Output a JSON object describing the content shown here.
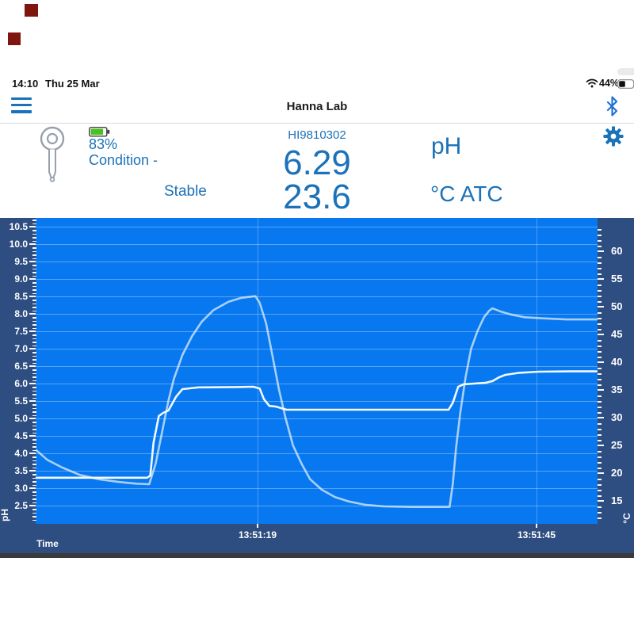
{
  "colors": {
    "accent_blue": "#1b72b8",
    "plot_bg": "#0778f0",
    "chart_bg": "#2e4d80",
    "strip": "#3b3b3b",
    "marker_red": "#7e150f",
    "battery_green": "#46c31e",
    "bluetooth_blue": "#1f6fd6",
    "ph_line": "#fbfdff",
    "temp_line": "#cfe5fa"
  },
  "status_bar": {
    "time": "14:10",
    "date": "Thu 25 Mar",
    "battery_percent": "44%"
  },
  "header": {
    "title": "Hanna Lab"
  },
  "meter": {
    "battery_level": "83%",
    "condition": "Condition -",
    "stability": "Stable",
    "device_id": "HI9810302",
    "ph_value": "6.29",
    "ph_unit": "pH",
    "temp_value": "23.6",
    "temp_unit": "°C ATC"
  },
  "chart_data": {
    "type": "line",
    "x_axis": {
      "title": "Time",
      "tick_labels": [
        "13:51:19",
        "13:51:45"
      ],
      "tick_offsets_s": [
        0,
        26
      ],
      "range_s": [
        -20.7,
        31.7
      ]
    },
    "y_axis_left": {
      "title": "pH",
      "tick_max": 10.5,
      "tick_min": 2.5,
      "tick_step": 0.5,
      "minor_step": 0.1,
      "range": [
        2.05,
        10.75
      ]
    },
    "y_axis_right": {
      "title": "°C",
      "tick_max": 60,
      "tick_min": 15,
      "tick_step": 5,
      "minor_step": 1,
      "range": [
        11.3,
        65.6
      ]
    },
    "legend": "none",
    "grid": "on",
    "series": [
      {
        "name": "Temperature",
        "axis": "right",
        "points": [
          [
            -20.6,
            24.1
          ],
          [
            -19.6,
            22.4
          ],
          [
            -18.2,
            21.0
          ],
          [
            -16.6,
            19.7
          ],
          [
            -14.8,
            18.9
          ],
          [
            -12.9,
            18.4
          ],
          [
            -11.3,
            18.1
          ],
          [
            -10.1,
            18.0
          ],
          [
            -9.5,
            21.7
          ],
          [
            -8.9,
            27.4
          ],
          [
            -8.3,
            33.1
          ],
          [
            -7.8,
            37.0
          ],
          [
            -7.0,
            41.3
          ],
          [
            -6.1,
            44.7
          ],
          [
            -5.2,
            47.3
          ],
          [
            -4.1,
            49.4
          ],
          [
            -2.7,
            50.9
          ],
          [
            -1.5,
            51.6
          ],
          [
            -0.2,
            51.9
          ],
          [
            0.2,
            50.7
          ],
          [
            0.8,
            47.0
          ],
          [
            1.4,
            41.0
          ],
          [
            2.0,
            35.0
          ],
          [
            2.6,
            30.0
          ],
          [
            3.3,
            25.0
          ],
          [
            4.1,
            21.7
          ],
          [
            4.9,
            18.9
          ],
          [
            6.0,
            17.0
          ],
          [
            7.2,
            15.7
          ],
          [
            8.5,
            14.9
          ],
          [
            10.0,
            14.3
          ],
          [
            11.8,
            14.0
          ],
          [
            14.4,
            13.9
          ],
          [
            17.4,
            13.9
          ],
          [
            17.9,
            13.9
          ],
          [
            18.2,
            18.1
          ],
          [
            18.5,
            24.6
          ],
          [
            18.9,
            31.0
          ],
          [
            19.4,
            37.4
          ],
          [
            19.9,
            42.4
          ],
          [
            20.5,
            45.6
          ],
          [
            21.1,
            48.1
          ],
          [
            21.6,
            49.3
          ],
          [
            21.9,
            49.7
          ],
          [
            22.7,
            49.1
          ],
          [
            23.6,
            48.6
          ],
          [
            24.9,
            48.1
          ],
          [
            26.6,
            47.9
          ],
          [
            28.8,
            47.7
          ],
          [
            31.6,
            47.7
          ]
        ]
      },
      {
        "name": "pH",
        "axis": "left",
        "points": [
          [
            -20.6,
            3.3
          ],
          [
            -14.0,
            3.3
          ],
          [
            -10.3,
            3.3
          ],
          [
            -10.0,
            3.36
          ],
          [
            -9.7,
            4.3
          ],
          [
            -9.2,
            5.07
          ],
          [
            -8.8,
            5.16
          ],
          [
            -8.3,
            5.23
          ],
          [
            -7.6,
            5.62
          ],
          [
            -7.0,
            5.84
          ],
          [
            -5.5,
            5.89
          ],
          [
            -2.0,
            5.9
          ],
          [
            -0.4,
            5.91
          ],
          [
            0.2,
            5.86
          ],
          [
            0.6,
            5.55
          ],
          [
            1.1,
            5.36
          ],
          [
            1.7,
            5.34
          ],
          [
            2.7,
            5.25
          ],
          [
            8.0,
            5.25
          ],
          [
            14.0,
            5.25
          ],
          [
            17.8,
            5.25
          ],
          [
            18.2,
            5.45
          ],
          [
            18.7,
            5.91
          ],
          [
            19.2,
            5.98
          ],
          [
            20.2,
            6.0
          ],
          [
            21.2,
            6.02
          ],
          [
            21.9,
            6.07
          ],
          [
            22.5,
            6.18
          ],
          [
            23.1,
            6.25
          ],
          [
            24.4,
            6.31
          ],
          [
            26.2,
            6.34
          ],
          [
            29.2,
            6.35
          ],
          [
            31.6,
            6.35
          ]
        ]
      }
    ]
  }
}
